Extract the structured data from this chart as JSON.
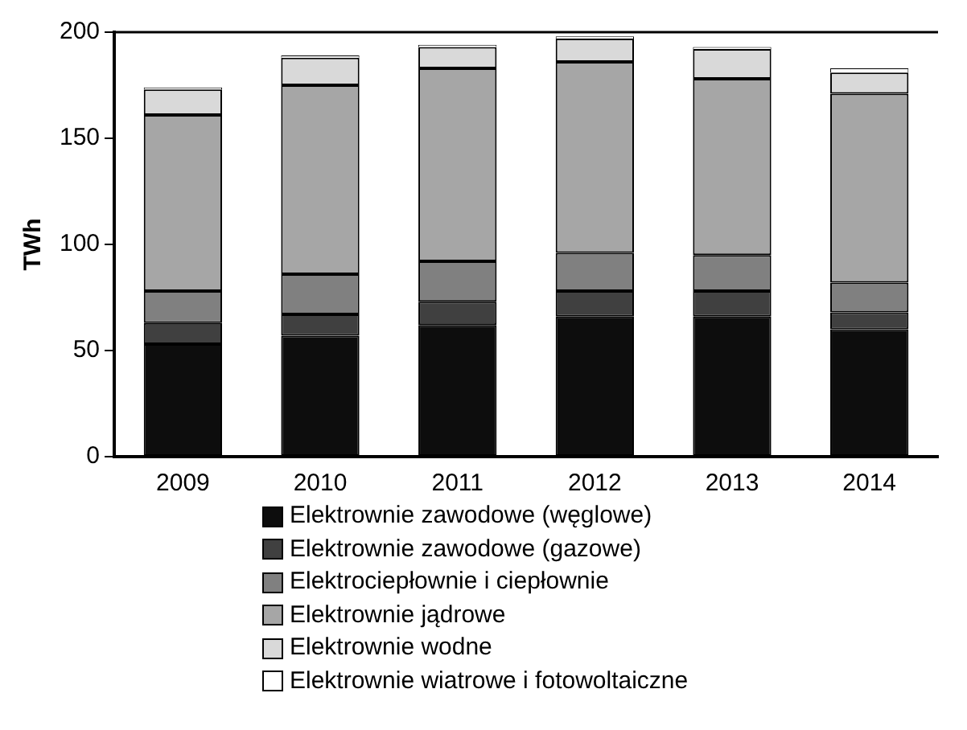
{
  "chart_data": {
    "type": "bar",
    "stacked": true,
    "ylabel": "TWh",
    "categories": [
      "2009",
      "2010",
      "2011",
      "2012",
      "2013",
      "2014"
    ],
    "ylim": [
      0,
      200
    ],
    "yticks": [
      0,
      50,
      100,
      150,
      200
    ],
    "grid": false,
    "legend": "bottom",
    "series": [
      {
        "name": "Elektrownie zawodowe (węglowe)",
        "color": "#0d0d0d",
        "values": [
          53,
          57,
          62,
          66,
          66,
          60
        ]
      },
      {
        "name": "Elektrownie zawodowe (gazowe)",
        "color": "#404040",
        "values": [
          10,
          10,
          11,
          12,
          12,
          8
        ]
      },
      {
        "name": "Elektrociepłownie i ciepłownie",
        "color": "#808080",
        "values": [
          15,
          19,
          19,
          18,
          17,
          14
        ]
      },
      {
        "name": "Elektrownie jądrowe",
        "color": "#a6a6a6",
        "values": [
          83,
          89,
          91,
          90,
          83,
          89
        ]
      },
      {
        "name": "Elektrownie wodne",
        "color": "#d9d9d9",
        "values": [
          12,
          13,
          10,
          11,
          14,
          10
        ]
      },
      {
        "name": "Elektrownie wiatrowe i fotowoltaiczne",
        "color": "#ffffff",
        "values": [
          1,
          1,
          1,
          1,
          1,
          2
        ]
      }
    ]
  }
}
